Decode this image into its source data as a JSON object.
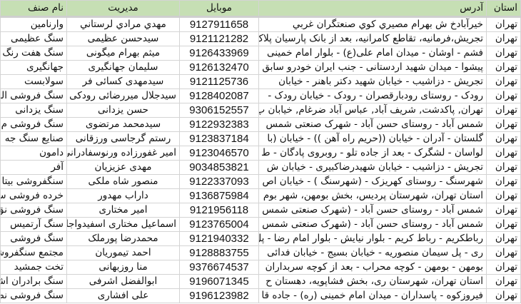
{
  "headers": {
    "province": "استان",
    "address": "آدرس",
    "mobile": "موبایل",
    "manager": "مدیریت",
    "guild": "نام صنف"
  },
  "colors": {
    "header_bg": "#c6dfb4",
    "grid": "#d4d4d4"
  },
  "rows": [
    {
      "province": "تهران",
      "address": "خيرآبادخ ش بهرام مصيري كوي صنعتگران غربي",
      "mobile": "9127911658",
      "manager": "مهدي مرادي لرستاني",
      "guild": "وارنامين"
    },
    {
      "province": "تهران",
      "address": "تجریش،فرمانیه، تقاطع کامرانیه، بعد از بانک پارسیان پلاک",
      "mobile": "9121121282",
      "manager": "سیدحسن عظیمی",
      "guild": "سنگ عظیمی"
    },
    {
      "province": "تهران",
      "address": "فشم - اوشان - میدان امام علی(ع) - بلوار امام خمینی",
      "mobile": "9126433969",
      "manager": "میثم بهرام میگونی",
      "guild": "سنگ هفت رنگ"
    },
    {
      "province": "تهران",
      "address": "پیشوا - میدان شهید اردستانی - جنب ایران خودرو سابق",
      "mobile": "9126132470",
      "manager": "سلیمان جهانگیری",
      "guild": "جهانگیری"
    },
    {
      "province": "تهران",
      "address": "تجریش - دزاشیب - خیابان شهید دکتر باهنر - خیابان",
      "mobile": "9121125736",
      "manager": "سیدمهدی کسائی فر",
      "guild": "سولابست"
    },
    {
      "province": "تهران",
      "address": "رودک - روستای رودبارقصران - رودک - خیابان رودک -",
      "mobile": "9128402087",
      "manager": "سیدجلال میررضائی رودکی",
      "guild": "سنگ فروشی البرز"
    },
    {
      "province": "تهران",
      "address": "تهران, پاکدشت, شریف آباد, عباس آباد ضرغام, خیابان پ",
      "mobile": "9306152557",
      "manager": "حسن یزدانی",
      "guild": "سنگ یزدانی"
    },
    {
      "province": "تهران",
      "address": "شمس آباد - روستای حسن آباد - شهرک صنعتی شمس",
      "mobile": "9122932383",
      "manager": "سیدمحمد مرتضوی",
      "guild": "سنگ فروشی م"
    },
    {
      "province": "تهران",
      "address": "گلستان - آدران - خیابان ((حریم راه آهن )) - خیابان (با",
      "mobile": "9123837184",
      "manager": "رستم گرجاسی ورزقانی",
      "guild": "صنایع سنگ جه"
    },
    {
      "province": "تهران",
      "address": "لواسان - لشگرک - بعد از جاده تلو - روبروی پادگان - ط",
      "mobile": "9123046570",
      "manager": "امیر غفورزاده ورنوسفادرانی",
      "guild": "دامون"
    },
    {
      "province": "تهران",
      "address": "تجریش - دزاشیب - خیابان شهیدرضاکبیری - خیابان ش",
      "mobile": "9034853821",
      "manager": "مهدی عزیزیان",
      "guild": "آفر"
    },
    {
      "province": "تهران",
      "address": "شهرسنگ - روستای کهریزک - (شهرسنگ ) - خیابان اص",
      "mobile": "9122337093",
      "manager": "منصور شاه ملکی",
      "guild": "سنگفروشی بیتا"
    },
    {
      "province": "تهران",
      "address": "استان تهران، شهرستان پردیس، بخش بومهن، شهر بوم",
      "mobile": "9136875984",
      "manager": "داراب مهدور",
      "guild": "خرده فروشی سن"
    },
    {
      "province": "تهران",
      "address": "شمس آباد - روستای حسن آباد - (شهرک صنعتی شمس",
      "mobile": "9121956118",
      "manager": "امیر مختاری",
      "guild": "سنگ فروشی نق"
    },
    {
      "province": "تهران",
      "address": "شمس آباد - روستای حسن آباد - (شهرک صنعتی شمس",
      "mobile": "9123765004",
      "manager": "اسماعیل مختاری اسفیدواجانی",
      "guild": "سنگ آرتمیس"
    },
    {
      "province": "تهران",
      "address": "رباطکریم - رباط کریم - بلوار نیایش - بلوار امام رضا - پل",
      "mobile": "9121940332",
      "manager": "محمدرضا پورملک",
      "guild": "سنگ فروشی"
    },
    {
      "province": "تهران",
      "address": "ری - پل سیمان منصوریه - خیابان بسیج - خیابان فدائی",
      "mobile": "9128883755",
      "manager": "احمد تیموریان",
      "guild": "مجتمع سنگفروشی"
    },
    {
      "province": "تهران",
      "address": "بومهن - بومهن - کوچه محراب - بعد از کوچه سربداران",
      "mobile": "9376674537",
      "manager": "منا روزبهانی",
      "guild": "تخت جمشید"
    },
    {
      "province": "تهران",
      "address": "استان تهران، شهرستان ری، بخش فشاپویه، دهستان ح",
      "mobile": "9196071345",
      "manager": "ابوالفضل اشرفی",
      "guild": "سنگ برادران اشرفی"
    },
    {
      "province": "تهران",
      "address": "فیروزکوه - پاسداران - میدان امام خمینی (ره) - جاده قا",
      "mobile": "9196123982",
      "manager": "علی افشاری",
      "guild": "سنگ فروشی نص"
    }
  ]
}
